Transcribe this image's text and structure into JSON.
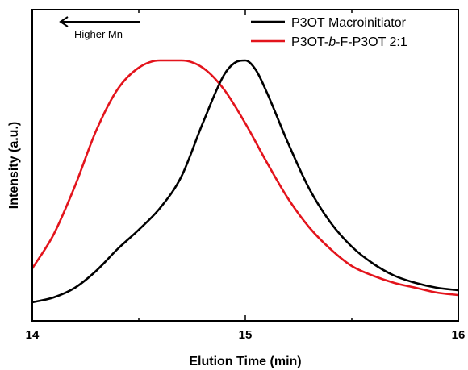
{
  "chart_data": {
    "type": "line",
    "xlabel": "Elution Time (min)",
    "ylabel": "Intensity (a.u.)",
    "xlim": [
      14,
      16
    ],
    "x_ticks": [
      "14",
      "15",
      "16"
    ],
    "y_ticks_shown": false,
    "grid": false,
    "legend_position": "top-right",
    "annotation": "Higher Mn",
    "series": [
      {
        "name": "P3OT Macroinitiator",
        "legend_prefix": "P3OT Macroinitiator",
        "legend_italic": "",
        "legend_suffix": "",
        "color": "#000000",
        "x": [
          14.0,
          14.1,
          14.2,
          14.3,
          14.4,
          14.5,
          14.6,
          14.7,
          14.8,
          14.9,
          14.95,
          15.0,
          15.05,
          15.1,
          15.2,
          15.3,
          15.4,
          15.5,
          15.6,
          15.7,
          15.8,
          15.9,
          16.0
        ],
        "y": [
          0.0,
          0.02,
          0.06,
          0.13,
          0.22,
          0.3,
          0.39,
          0.52,
          0.74,
          0.94,
          0.99,
          1.0,
          0.96,
          0.87,
          0.66,
          0.47,
          0.33,
          0.23,
          0.16,
          0.11,
          0.08,
          0.06,
          0.05
        ]
      },
      {
        "name": "P3OT-b-F-P3OT 2:1",
        "legend_prefix": "P3OT-",
        "legend_italic": "b",
        "legend_suffix": "-F-P3OT 2:1",
        "color": "#e3141c",
        "x": [
          14.0,
          14.1,
          14.2,
          14.3,
          14.4,
          14.5,
          14.6,
          14.7,
          14.8,
          14.9,
          15.0,
          15.1,
          15.2,
          15.3,
          15.4,
          15.5,
          15.6,
          15.7,
          15.8,
          15.9,
          16.0
        ],
        "y": [
          0.14,
          0.28,
          0.48,
          0.71,
          0.88,
          0.97,
          1.0,
          1.0,
          0.97,
          0.88,
          0.74,
          0.58,
          0.43,
          0.31,
          0.22,
          0.15,
          0.11,
          0.08,
          0.06,
          0.04,
          0.03
        ]
      }
    ]
  }
}
